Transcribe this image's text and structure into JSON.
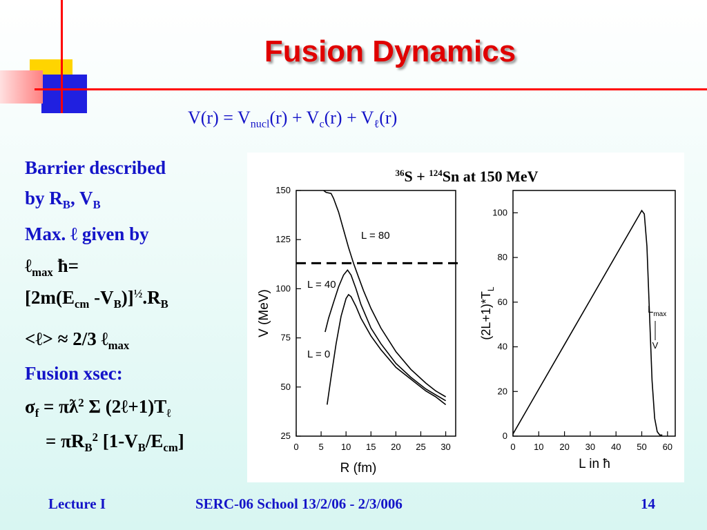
{
  "slide": {
    "title": "Fusion Dynamics",
    "formula": {
      "lhs": "V(r) = V",
      "sub_nucl": "nucl",
      "part2": "(r) + V",
      "sub_c": "c",
      "part3": "(r) + V",
      "sub_l": "ℓ",
      "part4": "(r)"
    },
    "bullets": {
      "b1_line1": "Barrier described",
      "b1_line2_pre": "by R",
      "b1_sub_rb": "B",
      "b1_line2_mid": ", V",
      "b1_sub_vb": "B",
      "b2_line1": "Max. ℓ  given by",
      "b2_l": "ℓ",
      "b2_sub_max": "max",
      "b2_hbar": " ħ=",
      "b2_f_pre": "[2m(E",
      "b2_f_sub_cm": "cm",
      "b2_f_mid": " -V",
      "b2_f_sub_b": "B",
      "b2_f_post": ")]",
      "b2_f_sup_half": "½",
      "b2_f_end": ".R",
      "b2_f_sub_b2": "B",
      "b3_pre": "<ℓ> ≈ 2/3 ℓ",
      "b3_sub_max": "max",
      "b4": "Fusion xsec:",
      "b5_sigma": "σ",
      "b5_sub_f": "f",
      "b5_mid": " = πƛ",
      "b5_sup2": "2",
      "b5_post": " Σ (2ℓ+1)T",
      "b5_sub_l": "ℓ",
      "b6_pre": "= πR",
      "b6_sub_b": "B",
      "b6_sup2": "2",
      "b6_mid": " [1-V",
      "b6_sub_b2": "B",
      "b6_mid2": "/E",
      "b6_sub_cm": "cm",
      "b6_end": "]"
    },
    "footer": {
      "left": "Lecture I",
      "center": "SERC-06 School  13/2/06 - 2/3/006",
      "page": "14"
    },
    "colors": {
      "title": "#e00000",
      "text_blue": "#1414c8",
      "deco_yellow": "#ffd400",
      "deco_blue": "#2020e0",
      "deco_pink": "#ff9090",
      "deco_red_line": "#ff0000"
    }
  },
  "chart_data": [
    {
      "type": "line",
      "figure_title_pre": "36",
      "figure_title_mid": "S + ",
      "figure_title_sup": "124",
      "figure_title_post": "Sn at 150 MeV",
      "xlabel": "R (fm)",
      "ylabel": "V (MeV)",
      "xlim": [
        0,
        32
      ],
      "ylim": [
        25,
        150
      ],
      "xticks": [
        "0",
        "5",
        "10",
        "15",
        "20",
        "25",
        "30"
      ],
      "yticks": [
        "25",
        "50",
        "75",
        "100",
        "125",
        "150"
      ],
      "reference_line": {
        "y": 113,
        "style": "dashed"
      },
      "series": [
        {
          "name": "L = 0",
          "points": [
            [
              6.2,
              41
            ],
            [
              7,
              55
            ],
            [
              8,
              72
            ],
            [
              9,
              86
            ],
            [
              10,
              95
            ],
            [
              10.5,
              97
            ],
            [
              11,
              96
            ],
            [
              12,
              91
            ],
            [
              13,
              85
            ],
            [
              15,
              76
            ],
            [
              17,
              69
            ],
            [
              20,
              60
            ],
            [
              23,
              54
            ],
            [
              26,
              48
            ],
            [
              28,
              45
            ],
            [
              30,
              41
            ]
          ]
        },
        {
          "name": "L = 40",
          "points": [
            [
              5.8,
              78
            ],
            [
              6.5,
              85
            ],
            [
              7.5,
              93
            ],
            [
              8.5,
              101
            ],
            [
              9.5,
              107
            ],
            [
              10.3,
              109.5
            ],
            [
              11,
              107
            ],
            [
              12,
              100
            ],
            [
              13,
              92
            ],
            [
              15,
              80
            ],
            [
              17,
              72
            ],
            [
              20,
              62
            ],
            [
              23,
              55
            ],
            [
              26,
              49
            ],
            [
              28,
              46
            ],
            [
              30,
              43
            ]
          ]
        },
        {
          "name": "L = 80",
          "points": [
            [
              5.5,
              150
            ],
            [
              6,
              149
            ],
            [
              7,
              148.5
            ],
            [
              7.5,
              146
            ],
            [
              8.5,
              139
            ],
            [
              9.5,
              130
            ],
            [
              10.5,
              121
            ],
            [
              11.5,
              113
            ],
            [
              12.5,
              106
            ],
            [
              13.5,
              99
            ],
            [
              15,
              90
            ],
            [
              17,
              80
            ],
            [
              20,
              68
            ],
            [
              23,
              59
            ],
            [
              26,
              52
            ],
            [
              28,
              48
            ],
            [
              30,
              45
            ]
          ]
        }
      ]
    },
    {
      "type": "line",
      "xlabel": "L in ħ",
      "ylabel": "(2L+1)*T",
      "ylabel_sub": "L",
      "xlim": [
        0,
        63
      ],
      "ylim": [
        0,
        110
      ],
      "xticks": [
        "0",
        "10",
        "20",
        "30",
        "40",
        "50",
        "60"
      ],
      "yticks": [
        "0",
        "20",
        "40",
        "60",
        "80",
        "100"
      ],
      "annotation": {
        "text": "L",
        "sub": "max",
        "arrow_label": "V"
      },
      "series": [
        {
          "name": "",
          "points": [
            [
              0,
              1
            ],
            [
              10,
              21
            ],
            [
              20,
              41
            ],
            [
              30,
              61
            ],
            [
              40,
              81
            ],
            [
              49,
              99
            ],
            [
              50,
              101
            ],
            [
              51,
              99.5
            ],
            [
              52,
              85
            ],
            [
              53,
              55
            ],
            [
              54,
              25
            ],
            [
              55,
              8
            ],
            [
              56,
              2
            ],
            [
              57,
              0.5
            ],
            [
              58,
              0.5
            ]
          ]
        }
      ]
    }
  ]
}
